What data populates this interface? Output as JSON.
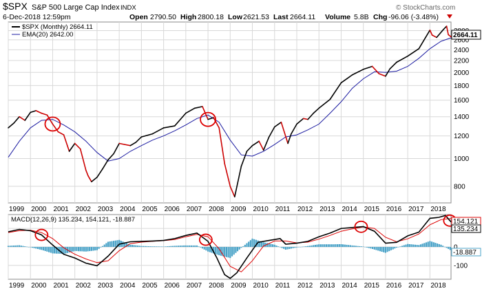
{
  "header": {
    "symbol": "$SPX",
    "name": "S&P 500 Large Cap Index",
    "exchange": "INDX",
    "date_time": "6-Dec-2018 12:59pm",
    "watermark": "© StockCharts.com",
    "open_label": "Open",
    "open": "2790.50",
    "high_label": "High",
    "high": "2800.18",
    "low_label": "Low",
    "low": "2621.53",
    "last_label": "Last",
    "last": "2664.11",
    "volume_label": "Volume",
    "volume": "5.8B",
    "chg_label": "Chg",
    "chg": "-96.06 (-3.48%)"
  },
  "colors": {
    "price_up": "#000000",
    "price_down": "#cc0000",
    "ema": "#1a1aa0",
    "macd": "#000000",
    "signal": "#dd0000",
    "hist": "#4aa3c8",
    "circle": "#dd0000",
    "grid": "#d8d8d8"
  },
  "chart_data": [
    {
      "type": "line",
      "panel": "price",
      "scale": "log",
      "ylim": [
        700,
        3000
      ],
      "xlim": [
        1999.0,
        2018.95
      ],
      "y_ticks": [
        "800",
        "1000",
        "1200",
        "1400",
        "1600",
        "1800",
        "2000",
        "2200",
        "2400",
        "2600",
        "2800"
      ],
      "x_ticks": [
        "1999",
        "2000",
        "2001",
        "2002",
        "2003",
        "2004",
        "2005",
        "2006",
        "2007",
        "2008",
        "2009",
        "2010",
        "2011",
        "2012",
        "2013",
        "2014",
        "2015",
        "2016",
        "2017",
        "2018"
      ],
      "legend": [
        "$SPX (Monthly) 2664.11",
        "EMA(20) 2642.00"
      ],
      "last_value_label": "2664.11",
      "series": [
        {
          "name": "$SPX (Monthly)",
          "x": [
            1999.0,
            1999.25,
            1999.5,
            1999.75,
            2000.0,
            2000.25,
            2000.5,
            2000.75,
            2001.0,
            2001.25,
            2001.5,
            2001.75,
            2002.0,
            2002.25,
            2002.5,
            2002.6,
            2002.75,
            2003.0,
            2003.25,
            2003.5,
            2003.75,
            2004.0,
            2004.25,
            2004.5,
            2004.75,
            2005.0,
            2005.5,
            2006.0,
            2006.5,
            2007.0,
            2007.4,
            2007.75,
            2008.0,
            2008.25,
            2008.5,
            2008.75,
            2009.0,
            2009.2,
            2009.5,
            2009.75,
            2010.0,
            2010.3,
            2010.5,
            2010.75,
            2011.0,
            2011.3,
            2011.6,
            2011.75,
            2012.0,
            2012.3,
            2012.5,
            2012.75,
            2013.0,
            2013.5,
            2014.0,
            2014.5,
            2015.0,
            2015.4,
            2015.7,
            2016.0,
            2016.2,
            2016.5,
            2017.0,
            2017.5,
            2018.0,
            2018.1,
            2018.3,
            2018.6,
            2018.75,
            2018.83,
            2018.95
          ],
          "y": [
            1280,
            1330,
            1400,
            1360,
            1450,
            1470,
            1440,
            1420,
            1320,
            1240,
            1210,
            1060,
            1130,
            1080,
            910,
            870,
            830,
            860,
            920,
            990,
            1040,
            1130,
            1120,
            1110,
            1140,
            1190,
            1220,
            1280,
            1300,
            1440,
            1500,
            1520,
            1370,
            1390,
            1280,
            960,
            800,
            735,
            940,
            1060,
            1110,
            1150,
            1070,
            1190,
            1290,
            1340,
            1130,
            1220,
            1320,
            1380,
            1370,
            1440,
            1500,
            1610,
            1840,
            1960,
            2050,
            2100,
            1980,
            1940,
            2060,
            2170,
            2280,
            2420,
            2810,
            2700,
            2650,
            2820,
            2900,
            2710,
            2664.11
          ]
        },
        {
          "name": "EMA(20)",
          "x": [
            1999.0,
            1999.5,
            2000.0,
            2000.5,
            2001.0,
            2001.5,
            2002.0,
            2002.5,
            2003.0,
            2003.5,
            2004.0,
            2004.5,
            2005.0,
            2005.5,
            2006.0,
            2006.5,
            2007.0,
            2007.5,
            2008.0,
            2008.5,
            2009.0,
            2009.5,
            2010.0,
            2010.5,
            2011.0,
            2011.5,
            2012.0,
            2012.5,
            2013.0,
            2013.5,
            2014.0,
            2014.5,
            2015.0,
            2015.5,
            2016.0,
            2016.5,
            2017.0,
            2017.5,
            2018.0,
            2018.5,
            2018.95
          ],
          "y": [
            1010,
            1150,
            1280,
            1360,
            1370,
            1310,
            1240,
            1150,
            1050,
            980,
            1000,
            1060,
            1110,
            1160,
            1200,
            1250,
            1310,
            1380,
            1420,
            1340,
            1160,
            1030,
            1020,
            1060,
            1120,
            1190,
            1210,
            1260,
            1320,
            1440,
            1580,
            1760,
            1900,
            2010,
            2000,
            2020,
            2100,
            2240,
            2420,
            2570,
            2642
          ]
        }
      ],
      "annotations_circles": [
        2001.0,
        2008.0
      ]
    },
    {
      "type": "line",
      "panel": "macd",
      "ylim": [
        -175,
        175
      ],
      "y_ticks": [
        "100",
        "0",
        "-100"
      ],
      "legend": [
        "MACD(12,26,9) 135.234, 154.121, -18.887"
      ],
      "value_labels": [
        "154.121",
        "135.234",
        "-18.887"
      ],
      "series": [
        {
          "name": "MACD(12,26,9)",
          "x": [
            1999.0,
            1999.5,
            2000.0,
            2000.5,
            2001.0,
            2001.5,
            2002.0,
            2002.5,
            2003.0,
            2003.5,
            2004.0,
            2004.5,
            2005.0,
            2005.5,
            2006.0,
            2006.5,
            2007.0,
            2007.5,
            2008.0,
            2008.4,
            2008.75,
            2009.0,
            2009.3,
            2009.75,
            2010.25,
            2010.75,
            2011.25,
            2011.5,
            2012.0,
            2012.5,
            2013.0,
            2013.5,
            2014.0,
            2014.5,
            2015.0,
            2015.5,
            2016.0,
            2016.5,
            2017.0,
            2017.5,
            2018.0,
            2018.4,
            2018.7,
            2018.95
          ],
          "y": [
            82,
            95,
            88,
            65,
            10,
            -40,
            -60,
            -88,
            -102,
            -50,
            15,
            28,
            30,
            32,
            35,
            45,
            62,
            75,
            30,
            -60,
            -150,
            -170,
            -140,
            -60,
            25,
            35,
            45,
            15,
            20,
            30,
            55,
            75,
            100,
            105,
            110,
            85,
            20,
            25,
            60,
            80,
            155,
            160,
            170,
            135.234
          ]
        },
        {
          "name": "Signal",
          "x": [
            1999.0,
            1999.5,
            2000.0,
            2000.5,
            2001.0,
            2001.5,
            2002.0,
            2002.5,
            2003.0,
            2003.5,
            2004.0,
            2004.5,
            2005.0,
            2005.5,
            2006.0,
            2006.5,
            2007.0,
            2007.5,
            2008.0,
            2008.5,
            2009.0,
            2009.5,
            2010.0,
            2010.5,
            2011.0,
            2011.5,
            2012.0,
            2012.5,
            2013.0,
            2013.5,
            2014.0,
            2014.5,
            2015.0,
            2015.5,
            2016.0,
            2016.5,
            2017.0,
            2017.5,
            2018.0,
            2018.5,
            2018.95
          ],
          "y": [
            78,
            88,
            90,
            78,
            45,
            -5,
            -40,
            -65,
            -85,
            -75,
            -20,
            18,
            26,
            30,
            34,
            40,
            55,
            68,
            55,
            -10,
            -105,
            -135,
            -75,
            5,
            32,
            32,
            22,
            26,
            42,
            62,
            85,
            98,
            108,
            100,
            52,
            28,
            44,
            70,
            120,
            148,
            154.121
          ]
        },
        {
          "name": "Histogram",
          "type": "bar",
          "x": [
            1999.0,
            1999.5,
            2000.0,
            2000.5,
            2001.0,
            2001.5,
            2002.0,
            2002.5,
            2003.0,
            2003.5,
            2004.0,
            2004.5,
            2005.0,
            2005.5,
            2006.0,
            2006.5,
            2007.0,
            2007.5,
            2008.0,
            2008.5,
            2009.0,
            2009.5,
            2010.0,
            2010.5,
            2011.0,
            2011.5,
            2012.0,
            2012.5,
            2013.0,
            2013.5,
            2014.0,
            2014.5,
            2015.0,
            2015.5,
            2016.0,
            2016.5,
            2017.0,
            2017.5,
            2018.0,
            2018.5,
            2018.95
          ],
          "y": [
            6,
            9,
            -2,
            -16,
            -35,
            -38,
            -22,
            -25,
            -18,
            28,
            38,
            12,
            5,
            3,
            2,
            6,
            8,
            8,
            -25,
            -45,
            -60,
            -5,
            45,
            25,
            12,
            -15,
            -3,
            5,
            14,
            14,
            15,
            8,
            2,
            -14,
            -32,
            -4,
            16,
            10,
            32,
            12,
            -18.887
          ]
        }
      ],
      "annotations_circles": [
        2000.5,
        2007.9,
        2014.9,
        2018.9
      ]
    }
  ]
}
